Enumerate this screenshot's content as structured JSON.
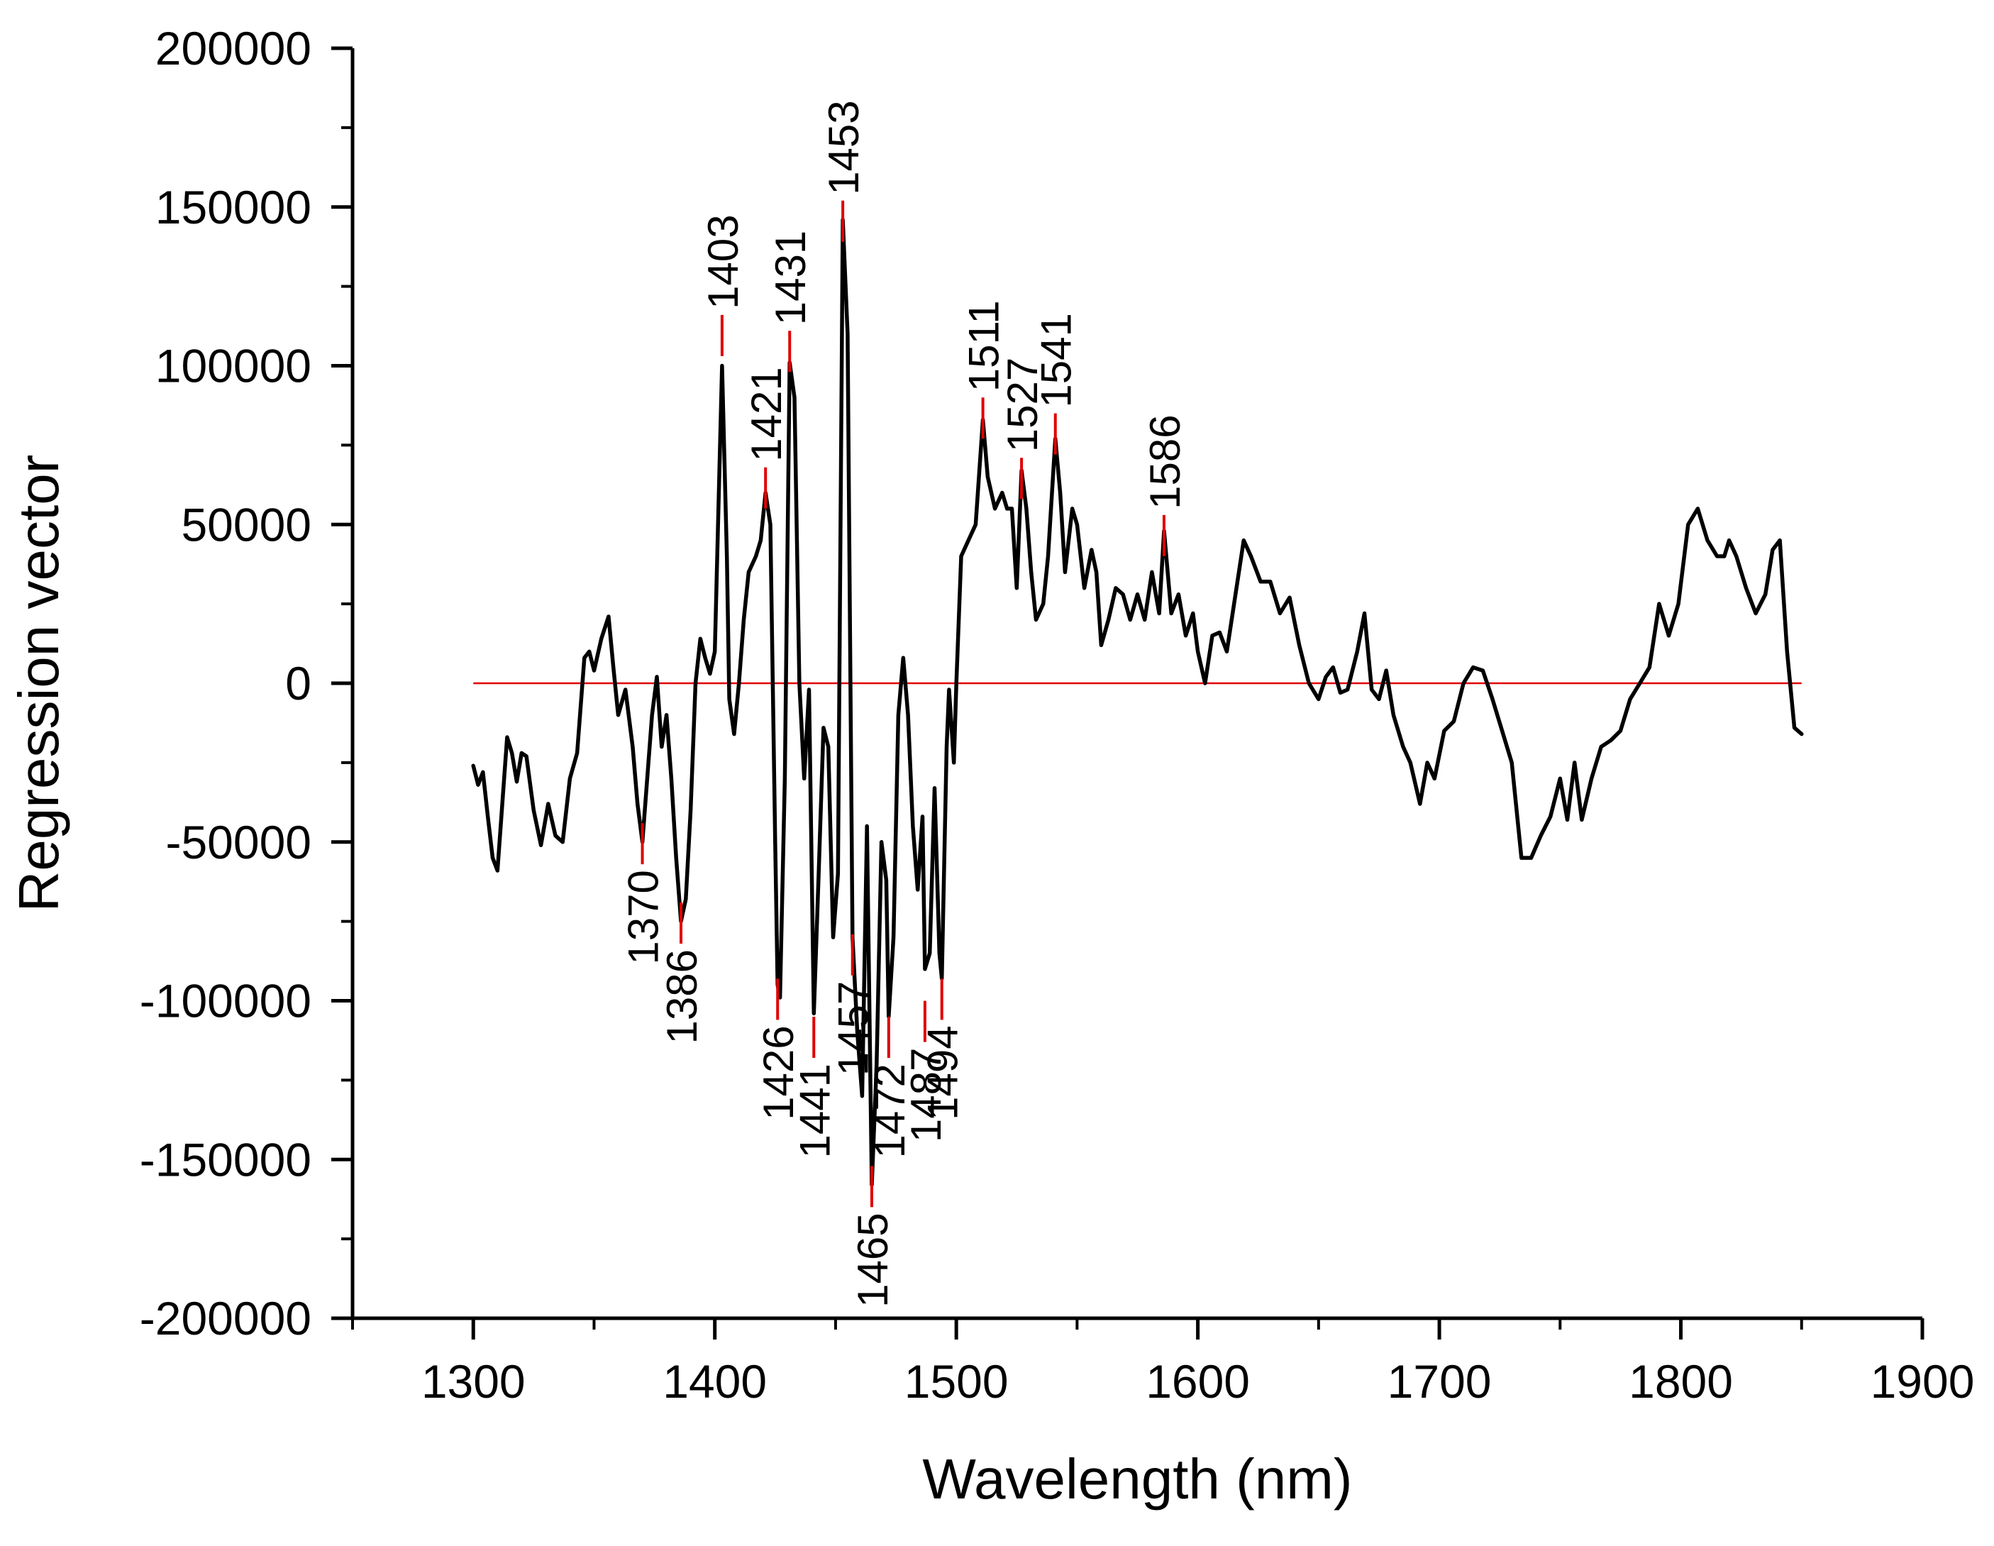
{
  "chart_data": {
    "type": "line",
    "xlabel": "Wavelength (nm)",
    "ylabel": "Regression vector",
    "xlim": [
      1250,
      1900
    ],
    "ylim": [
      -200000,
      200000
    ],
    "x_ticks": [
      1300,
      1400,
      1500,
      1600,
      1700,
      1800,
      1900
    ],
    "x_tick_labels": [
      "1300",
      "1400",
      "1500",
      "1600",
      "1700",
      "1800",
      "1900"
    ],
    "y_ticks": [
      -200000,
      -150000,
      -100000,
      -50000,
      0,
      50000,
      100000,
      150000,
      200000
    ],
    "y_tick_labels": [
      "-200000",
      "-150000",
      "-100000",
      "-50000",
      "0",
      "50000",
      "100000",
      "150000",
      "200000"
    ],
    "grid": false,
    "reference_line": {
      "y": 0,
      "x_range": [
        1300,
        1850
      ],
      "color": "#e00000"
    },
    "colors": {
      "series": "#000000",
      "marker": "#e00000",
      "reference": "#e00000"
    },
    "series": [
      {
        "color": "#000000",
        "points": [
          [
            1300,
            -26000
          ],
          [
            1302,
            -32000
          ],
          [
            1304,
            -28000
          ],
          [
            1306,
            -42000
          ],
          [
            1308,
            -55000
          ],
          [
            1310,
            -59000
          ],
          [
            1312,
            -38000
          ],
          [
            1314,
            -17000
          ],
          [
            1316,
            -22000
          ],
          [
            1318,
            -31000
          ],
          [
            1320,
            -22000
          ],
          [
            1322,
            -23000
          ],
          [
            1325,
            -40000
          ],
          [
            1328,
            -51000
          ],
          [
            1331,
            -38000
          ],
          [
            1334,
            -48000
          ],
          [
            1337,
            -50000
          ],
          [
            1340,
            -30000
          ],
          [
            1343,
            -22000
          ],
          [
            1346,
            8000
          ],
          [
            1348,
            10000
          ],
          [
            1350,
            4000
          ],
          [
            1353,
            14000
          ],
          [
            1356,
            21000
          ],
          [
            1358,
            5000
          ],
          [
            1360,
            -10000
          ],
          [
            1363,
            -2000
          ],
          [
            1366,
            -20000
          ],
          [
            1368,
            -38000
          ],
          [
            1370,
            -50000
          ],
          [
            1372,
            -30000
          ],
          [
            1374,
            -10000
          ],
          [
            1376,
            2000
          ],
          [
            1378,
            -20000
          ],
          [
            1380,
            -10000
          ],
          [
            1382,
            -30000
          ],
          [
            1384,
            -55000
          ],
          [
            1386,
            -75000
          ],
          [
            1388,
            -68000
          ],
          [
            1390,
            -40000
          ],
          [
            1392,
            0
          ],
          [
            1394,
            14000
          ],
          [
            1396,
            8000
          ],
          [
            1398,
            3000
          ],
          [
            1400,
            10000
          ],
          [
            1403,
            100000
          ],
          [
            1405,
            40000
          ],
          [
            1406,
            -5000
          ],
          [
            1408,
            -16000
          ],
          [
            1410,
            0
          ],
          [
            1412,
            20000
          ],
          [
            1414,
            35000
          ],
          [
            1417,
            40000
          ],
          [
            1419,
            45000
          ],
          [
            1421,
            60000
          ],
          [
            1423,
            50000
          ],
          [
            1424,
            0
          ],
          [
            1425,
            -50000
          ],
          [
            1426,
            -95000
          ],
          [
            1427,
            -99000
          ],
          [
            1429,
            -30000
          ],
          [
            1431,
            101000
          ],
          [
            1433,
            90000
          ],
          [
            1435,
            0
          ],
          [
            1437,
            -30000
          ],
          [
            1439,
            -2000
          ],
          [
            1441,
            -104000
          ],
          [
            1443,
            -60000
          ],
          [
            1445,
            -14000
          ],
          [
            1447,
            -20000
          ],
          [
            1449,
            -80000
          ],
          [
            1451,
            -60000
          ],
          [
            1453,
            146000
          ],
          [
            1455,
            110000
          ],
          [
            1457,
            -80000
          ],
          [
            1459,
            -110000
          ],
          [
            1461,
            -130000
          ],
          [
            1463,
            -45000
          ],
          [
            1465,
            -158000
          ],
          [
            1467,
            -120000
          ],
          [
            1469,
            -50000
          ],
          [
            1471,
            -62000
          ],
          [
            1472,
            -105000
          ],
          [
            1474,
            -80000
          ],
          [
            1476,
            -10000
          ],
          [
            1478,
            8000
          ],
          [
            1480,
            -10000
          ],
          [
            1482,
            -45000
          ],
          [
            1484,
            -65000
          ],
          [
            1486,
            -42000
          ],
          [
            1487,
            -90000
          ],
          [
            1489,
            -85000
          ],
          [
            1491,
            -33000
          ],
          [
            1493,
            -85000
          ],
          [
            1494,
            -93000
          ],
          [
            1496,
            -20000
          ],
          [
            1497,
            -2000
          ],
          [
            1499,
            -25000
          ],
          [
            1500,
            0
          ],
          [
            1502,
            40000
          ],
          [
            1505,
            45000
          ],
          [
            1508,
            50000
          ],
          [
            1511,
            83000
          ],
          [
            1513,
            65000
          ],
          [
            1516,
            55000
          ],
          [
            1519,
            60000
          ],
          [
            1521,
            55000
          ],
          [
            1523,
            55000
          ],
          [
            1525,
            30000
          ],
          [
            1527,
            67000
          ],
          [
            1529,
            55000
          ],
          [
            1531,
            35000
          ],
          [
            1533,
            20000
          ],
          [
            1536,
            25000
          ],
          [
            1538,
            40000
          ],
          [
            1541,
            77000
          ],
          [
            1543,
            60000
          ],
          [
            1545,
            35000
          ],
          [
            1548,
            55000
          ],
          [
            1550,
            50000
          ],
          [
            1553,
            30000
          ],
          [
            1556,
            42000
          ],
          [
            1558,
            35000
          ],
          [
            1560,
            12000
          ],
          [
            1563,
            20000
          ],
          [
            1566,
            30000
          ],
          [
            1569,
            28000
          ],
          [
            1572,
            20000
          ],
          [
            1575,
            28000
          ],
          [
            1578,
            20000
          ],
          [
            1581,
            35000
          ],
          [
            1584,
            22000
          ],
          [
            1586,
            48000
          ],
          [
            1589,
            22000
          ],
          [
            1592,
            28000
          ],
          [
            1595,
            15000
          ],
          [
            1598,
            22000
          ],
          [
            1600,
            10000
          ],
          [
            1603,
            0
          ],
          [
            1606,
            15000
          ],
          [
            1609,
            16000
          ],
          [
            1612,
            10000
          ],
          [
            1615,
            25000
          ],
          [
            1619,
            45000
          ],
          [
            1622,
            40000
          ],
          [
            1626,
            32000
          ],
          [
            1630,
            32000
          ],
          [
            1634,
            22000
          ],
          [
            1638,
            27000
          ],
          [
            1642,
            12000
          ],
          [
            1646,
            0
          ],
          [
            1650,
            -5000
          ],
          [
            1653,
            2000
          ],
          [
            1656,
            5000
          ],
          [
            1659,
            -3000
          ],
          [
            1662,
            -2000
          ],
          [
            1666,
            10000
          ],
          [
            1669,
            22000
          ],
          [
            1672,
            -2000
          ],
          [
            1675,
            -5000
          ],
          [
            1678,
            4000
          ],
          [
            1681,
            -10000
          ],
          [
            1685,
            -20000
          ],
          [
            1688,
            -25000
          ],
          [
            1692,
            -38000
          ],
          [
            1695,
            -25000
          ],
          [
            1698,
            -30000
          ],
          [
            1702,
            -15000
          ],
          [
            1706,
            -12000
          ],
          [
            1710,
            0
          ],
          [
            1714,
            5000
          ],
          [
            1718,
            4000
          ],
          [
            1722,
            -5000
          ],
          [
            1726,
            -15000
          ],
          [
            1730,
            -25000
          ],
          [
            1734,
            -55000
          ],
          [
            1738,
            -55000
          ],
          [
            1742,
            -48000
          ],
          [
            1746,
            -42000
          ],
          [
            1750,
            -30000
          ],
          [
            1753,
            -43000
          ],
          [
            1756,
            -25000
          ],
          [
            1759,
            -43000
          ],
          [
            1763,
            -30000
          ],
          [
            1767,
            -20000
          ],
          [
            1771,
            -18000
          ],
          [
            1775,
            -15000
          ],
          [
            1779,
            -5000
          ],
          [
            1783,
            0
          ],
          [
            1787,
            5000
          ],
          [
            1791,
            25000
          ],
          [
            1795,
            15000
          ],
          [
            1799,
            25000
          ],
          [
            1803,
            50000
          ],
          [
            1807,
            55000
          ],
          [
            1811,
            45000
          ],
          [
            1815,
            40000
          ],
          [
            1818,
            40000
          ],
          [
            1820,
            45000
          ],
          [
            1823,
            40000
          ],
          [
            1827,
            30000
          ],
          [
            1831,
            22000
          ],
          [
            1835,
            28000
          ],
          [
            1838,
            42000
          ],
          [
            1841,
            45000
          ],
          [
            1844,
            10000
          ],
          [
            1847,
            -14000
          ],
          [
            1850,
            -16000
          ]
        ]
      }
    ],
    "peak_labels": [
      {
        "label": "1370",
        "x": 1370,
        "y": -57000
      },
      {
        "label": "1386",
        "x": 1386,
        "y": -82000
      },
      {
        "label": "1403",
        "x": 1403,
        "y": 116000
      },
      {
        "label": "1421",
        "x": 1421,
        "y": 68000
      },
      {
        "label": "1426",
        "x": 1426,
        "y": -106000
      },
      {
        "label": "1431",
        "x": 1431,
        "y": 111000
      },
      {
        "label": "1441",
        "x": 1441,
        "y": -118000
      },
      {
        "label": "1453",
        "x": 1453,
        "y": 152000
      },
      {
        "label": "1457",
        "x": 1457,
        "y": -92000
      },
      {
        "label": "1465",
        "x": 1465,
        "y": -165000
      },
      {
        "label": "1472",
        "x": 1472,
        "y": -118000
      },
      {
        "label": "1487",
        "x": 1487,
        "y": -113000
      },
      {
        "label": "1494",
        "x": 1494,
        "y": -106000
      },
      {
        "label": "1511",
        "x": 1511,
        "y": 90000
      },
      {
        "label": "1527",
        "x": 1527,
        "y": 71000
      },
      {
        "label": "1541",
        "x": 1541,
        "y": 85000
      },
      {
        "label": "1586",
        "x": 1586,
        "y": 53000
      }
    ]
  }
}
